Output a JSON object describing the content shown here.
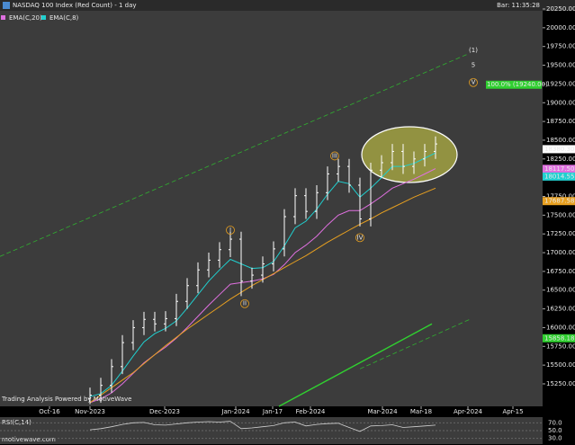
{
  "chart_data": {
    "type": "ohlc",
    "title": "NASDAQ 100 Index (Red Count) - 1 day",
    "bar_time": "Bar: 11:35:28",
    "watermark": "Trading Analysis Powered by MotiveWave",
    "footer": "motivewave.com",
    "color": "#ffffff",
    "x": [
      25,
      28,
      31,
      34,
      37,
      40,
      43,
      46,
      49,
      52,
      55,
      58,
      61,
      64,
      67,
      70,
      73,
      76,
      79,
      82,
      85,
      88,
      91,
      94,
      97,
      100,
      103,
      106,
      109,
      112,
      115,
      118,
      121
    ],
    "open": [
      15050,
      15100,
      15230,
      15480,
      15800,
      16000,
      16110,
      16050,
      16120,
      16350,
      16560,
      16770,
      16900,
      17040,
      17180,
      16620,
      16700,
      16850,
      17050,
      17480,
      17760,
      17550,
      17800,
      18050,
      18150,
      17900,
      17450,
      18100,
      18200,
      18350,
      18150,
      18250,
      18350
    ],
    "high": [
      15200,
      15330,
      15580,
      15900,
      16100,
      16210,
      16210,
      16220,
      16450,
      16660,
      16870,
      17000,
      17140,
      17280,
      17280,
      16800,
      16950,
      17150,
      17580,
      17860,
      17860,
      17900,
      18150,
      18250,
      18250,
      18000,
      18200,
      18300,
      18450,
      18450,
      18350,
      18450,
      18550
    ],
    "low": [
      14980,
      15000,
      15130,
      15380,
      15700,
      15900,
      15950,
      15950,
      16020,
      16250,
      16460,
      16670,
      16800,
      16940,
      16420,
      16520,
      16600,
      16750,
      16950,
      17380,
      17450,
      17450,
      17700,
      17950,
      17800,
      17350,
      17350,
      18000,
      18100,
      18050,
      18050,
      18150,
      18250
    ],
    "close": [
      15100,
      15230,
      15480,
      15800,
      16000,
      16110,
      16050,
      16120,
      16350,
      16560,
      16770,
      16900,
      17040,
      17180,
      16620,
      16700,
      16850,
      17050,
      17480,
      17760,
      17550,
      17800,
      18050,
      18150,
      17900,
      17450,
      18100,
      18200,
      18350,
      18150,
      18250,
      18350,
      18450
    ],
    "xlim": [
      0,
      150.75
    ],
    "xticks": [
      {
        "value": 13.75,
        "label": "Oct-16"
      },
      {
        "value": 25,
        "label": "Nov-2023"
      },
      {
        "value": 45.75,
        "label": "Dec-2023"
      },
      {
        "value": 65.5,
        "label": "Jan-2024"
      },
      {
        "value": 75.75,
        "label": "Jan-17"
      },
      {
        "value": 86.25,
        "label": "Feb-2024"
      },
      {
        "value": 106.25,
        "label": "Mar-2024"
      },
      {
        "value": 117,
        "label": "Mar-18"
      },
      {
        "value": 130,
        "label": "Apr-2024"
      },
      {
        "value": 142.5,
        "label": "Apr-15"
      }
    ],
    "ylim": [
      14950,
      20370
    ],
    "yticks": [
      {
        "value": 15250,
        "label": "15250.00"
      },
      {
        "value": 15500,
        "label": "15500.00"
      },
      {
        "value": 15750,
        "label": "15750.00"
      },
      {
        "value": 16000,
        "label": "16000.00"
      },
      {
        "value": 16250,
        "label": "16250.00"
      },
      {
        "value": 16500,
        "label": "16500.00"
      },
      {
        "value": 16750,
        "label": "16750.00"
      },
      {
        "value": 17000,
        "label": "17000.00"
      },
      {
        "value": 17250,
        "label": "17250.00"
      },
      {
        "value": 17500,
        "label": "17500.00"
      },
      {
        "value": 17750,
        "label": "17750.00"
      },
      {
        "value": 18000,
        "label": "18000.00"
      },
      {
        "value": 18250,
        "label": "18250.00"
      },
      {
        "value": 18500,
        "label": "18500.00"
      },
      {
        "value": 18750,
        "label": "18750.00"
      },
      {
        "value": 19000,
        "label": "19000.00"
      },
      {
        "value": 19250,
        "label": "19250.00"
      },
      {
        "value": 19500,
        "label": "19500.00"
      },
      {
        "value": 19750,
        "label": "19750.00"
      },
      {
        "value": 20000,
        "label": "20000.00"
      },
      {
        "value": 20250,
        "label": "20250.00"
      }
    ],
    "series": [
      {
        "name": "EMA(C,20)",
        "color": "#e070e0",
        "values": [
          15000,
          15050,
          15130,
          15250,
          15390,
          15530,
          15640,
          15740,
          15860,
          16000,
          16150,
          16300,
          16440,
          16580,
          16600,
          16620,
          16650,
          16710,
          16840,
          17000,
          17100,
          17220,
          17370,
          17500,
          17560,
          17560,
          17650,
          17750,
          17860,
          17920,
          17980,
          18050,
          18120
        ]
      },
      {
        "name": "EMA(C,8)",
        "color": "#20d0d0",
        "values": [
          15080,
          15120,
          15230,
          15420,
          15620,
          15810,
          15920,
          15990,
          16090,
          16260,
          16440,
          16620,
          16770,
          16910,
          16850,
          16790,
          16800,
          16880,
          17090,
          17330,
          17420,
          17580,
          17780,
          17950,
          17920,
          17740,
          17860,
          18000,
          18150,
          18150,
          18190,
          18260,
          18330
        ]
      },
      {
        "color": "#e8a020",
        "values": [
          15000,
          15100,
          15200,
          15300,
          15400,
          15520,
          15640,
          15760,
          15870,
          15980,
          16080,
          16180,
          16280,
          16380,
          16470,
          16560,
          16640,
          16720,
          16800,
          16880,
          16960,
          17050,
          17140,
          17220,
          17300,
          17380,
          17450,
          17530,
          17600,
          17670,
          17740,
          17800,
          17860
        ]
      }
    ],
    "trendlines": [
      {
        "color": "#30b030",
        "dashed": true,
        "x": [
          0,
          130
        ],
        "y": [
          16950,
          19650
        ]
      },
      {
        "color": "#30b030",
        "dashed": true,
        "x": [
          100,
          130.5
        ],
        "y": [
          15450,
          16110
        ]
      },
      {
        "color": "#30d030",
        "dashed": false,
        "x": [
          77.5,
          120
        ],
        "y": [
          14950,
          16050
        ]
      }
    ],
    "waves": [
      {
        "label": "(1)",
        "x": 131.5,
        "y": 19700,
        "color": "#20d0d0",
        "circle": false
      },
      {
        "label": "5",
        "x": 131.5,
        "y": 19500,
        "color": "#30d030",
        "circle": false
      },
      {
        "label": "V",
        "x": 131.5,
        "y": 19270,
        "color": "#e8a020",
        "circle": true
      },
      {
        "label": "III",
        "x": 93,
        "y": 18290,
        "color": "#e8a020",
        "circle": true
      },
      {
        "label": "IV",
        "x": 100,
        "y": 17200,
        "color": "#e8a020",
        "circle": true
      },
      {
        "label": "I",
        "x": 64,
        "y": 17300,
        "color": "#e8a020",
        "circle": true
      },
      {
        "label": "II",
        "x": 68,
        "y": 16320,
        "color": "#e8a020",
        "circle": true
      }
    ],
    "target_label": {
      "label": "100.0% (19240.00)",
      "value": 19240,
      "color": "#30d030"
    },
    "price_labels": [
      {
        "label": "18380.30",
        "value": 18380.3,
        "color": "#ffffff"
      },
      {
        "label": "18117.50",
        "value": 18117.5,
        "color": "#e070e0"
      },
      {
        "label": "18014.55",
        "value": 18014.55,
        "color": "#20d0d0"
      },
      {
        "label": "17687.58",
        "value": 17687.58,
        "color": "#e8a020"
      },
      {
        "label": "15858.18",
        "value": 15858.18,
        "color": "#30d030"
      }
    ],
    "rsi": {
      "title": "RSI(C,14)",
      "color": "#d0d0d0",
      "values": [
        52,
        55,
        60,
        66,
        70,
        71,
        65,
        64,
        67,
        70,
        72,
        73,
        72,
        74,
        55,
        57,
        60,
        63,
        70,
        72,
        62,
        66,
        68,
        69,
        58,
        48,
        62,
        63,
        65,
        58,
        60,
        62,
        64
      ],
      "ylim": [
        20,
        80
      ],
      "yticks": [
        {
          "value": 70,
          "label": "70.0"
        },
        {
          "value": 50,
          "label": "50.0"
        },
        {
          "value": 30,
          "label": "30.0"
        }
      ]
    }
  }
}
